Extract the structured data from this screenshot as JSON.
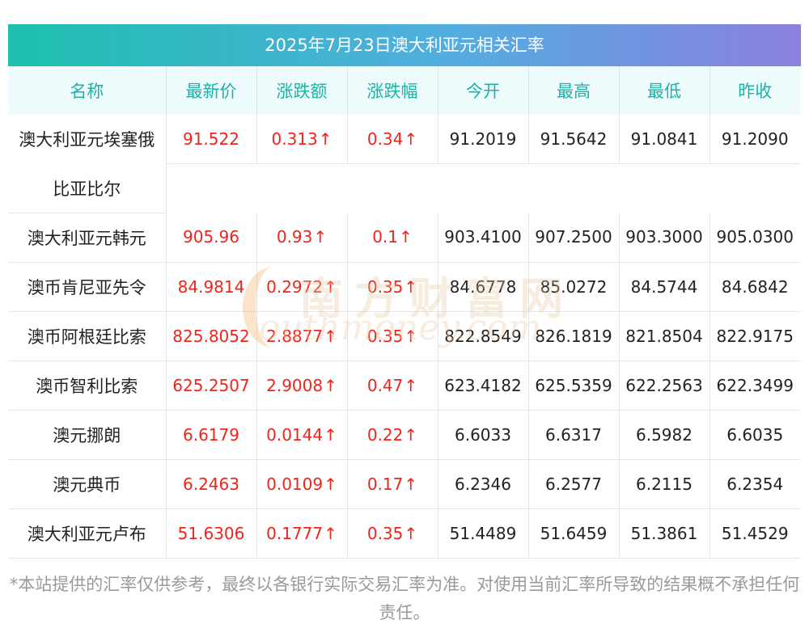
{
  "title": "2025年7月23日澳大利亚元相关汇率",
  "columns": [
    "名称",
    "最新价",
    "涨跌额",
    "涨跌幅",
    "今开",
    "最高",
    "最低",
    "昨收"
  ],
  "arrow": "↑",
  "colors": {
    "up": "#f2231a",
    "header_text": "#19b3a8",
    "header_bg": "#eefbfc"
  },
  "rows": [
    {
      "name": "澳大利亚元埃塞俄",
      "name_cont": "比亚比尔",
      "latest": "91.522",
      "change": "0.313",
      "pct": "0.34",
      "open": "91.2019",
      "high": "91.5642",
      "low": "91.0841",
      "prev": "91.2090"
    },
    {
      "name": "澳大利亚元韩元",
      "latest": "905.96",
      "change": "0.93",
      "pct": "0.1",
      "open": "903.4100",
      "high": "907.2500",
      "low": "903.3000",
      "prev": "905.0300"
    },
    {
      "name": "澳币肯尼亚先令",
      "latest": "84.9814",
      "change": "0.2972",
      "pct": "0.35",
      "open": "84.6778",
      "high": "85.0272",
      "low": "84.5744",
      "prev": "84.6842"
    },
    {
      "name": "澳币阿根廷比索",
      "latest": "825.8052",
      "change": "2.8877",
      "pct": "0.35",
      "open": "822.8549",
      "high": "826.1819",
      "low": "821.8504",
      "prev": "822.9175"
    },
    {
      "name": "澳币智利比索",
      "latest": "625.2507",
      "change": "2.9008",
      "pct": "0.47",
      "open": "623.4182",
      "high": "625.5359",
      "low": "622.2563",
      "prev": "622.3499"
    },
    {
      "name": "澳元挪朗",
      "latest": "6.6179",
      "change": "0.0144",
      "pct": "0.22",
      "open": "6.6033",
      "high": "6.6317",
      "low": "6.5982",
      "prev": "6.6035"
    },
    {
      "name": "澳元典币",
      "latest": "6.2463",
      "change": "0.0109",
      "pct": "0.17",
      "open": "6.2346",
      "high": "6.2577",
      "low": "6.2115",
      "prev": "6.2354"
    },
    {
      "name": "澳大利亚元卢布",
      "latest": "51.6306",
      "change": "0.1777",
      "pct": "0.35",
      "open": "51.4489",
      "high": "51.6459",
      "low": "51.3861",
      "prev": "51.4529"
    }
  ],
  "watermark": {
    "cn": "南方财富网",
    "en": "outhmoney.com"
  },
  "disclaimer": "*本站提供的汇率仅供参考，最终以各银行实际交易汇率为准。对使用当前汇率所导致的结果概不承担任何责任。"
}
